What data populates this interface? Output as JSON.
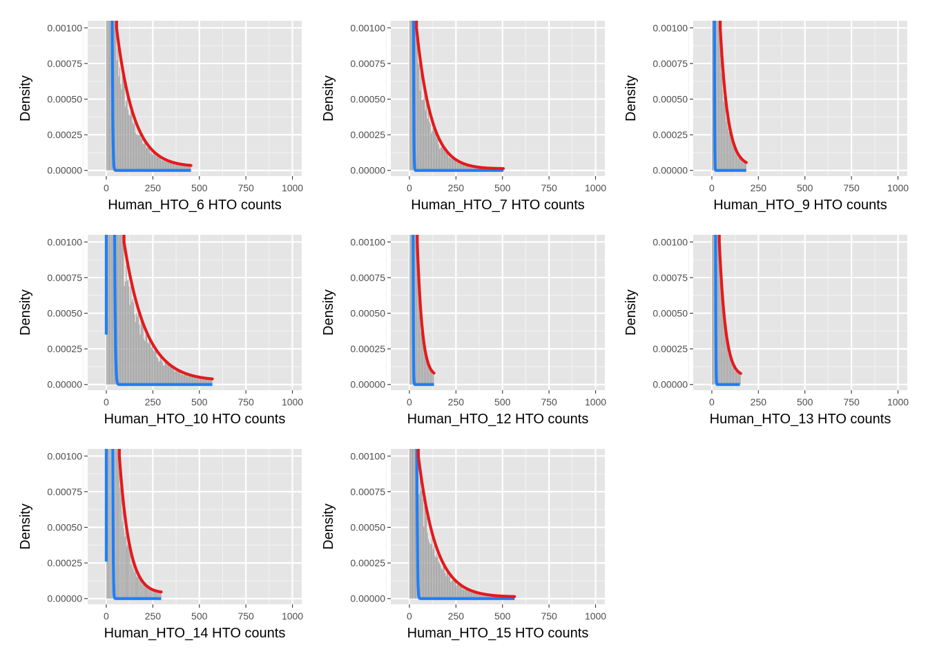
{
  "colors": {
    "panel_background": "#e5e5e5",
    "histogram": "#a3a3a3",
    "negative_fit": "#1f7ff5",
    "positive_fit": "#e41a1c"
  },
  "chart_data": [
    {
      "type": "bar",
      "panel": "Human_HTO_6",
      "xlabel": "Human_HTO_6 HTO counts",
      "ylabel": "Density",
      "xlim": [
        -100,
        1050
      ],
      "ylim": [
        -4e-05,
        0.00105
      ],
      "xticks": [
        0,
        250,
        500,
        750,
        1000
      ],
      "xtick_labels": [
        "0",
        "250",
        "500",
        "750",
        "1000"
      ],
      "yticks": [
        0,
        0.00025,
        0.0005,
        0.00075,
        0.001
      ],
      "ytick_labels": [
        "0.00000",
        "0.00025",
        "0.00050",
        "0.00075",
        "0.00100"
      ],
      "histogram": {
        "x_start": 0,
        "x_end": 455,
        "bin_width": 5
      },
      "negative_fit": {
        "peak_x": 12,
        "width": 20,
        "x_max": 455
      },
      "positive_fit": {
        "x_start": 55,
        "x_end": 455,
        "scale": 0.001,
        "decay": 95,
        "y_end": 2e-05
      }
    },
    {
      "type": "bar",
      "panel": "Human_HTO_7",
      "xlabel": "Human_HTO_7 HTO counts",
      "ylabel": "Density",
      "xlim": [
        -100,
        1050
      ],
      "ylim": [
        -4e-05,
        0.00105
      ],
      "xticks": [
        0,
        250,
        500,
        750,
        1000
      ],
      "xtick_labels": [
        "0",
        "250",
        "500",
        "750",
        "1000"
      ],
      "yticks": [
        0,
        0.00025,
        0.0005,
        0.00075,
        0.001
      ],
      "ytick_labels": [
        "0.00000",
        "0.00025",
        "0.00050",
        "0.00075",
        "0.00100"
      ],
      "histogram": {
        "x_start": 0,
        "x_end": 505,
        "bin_width": 5
      },
      "negative_fit": {
        "peak_x": 10,
        "width": 12,
        "x_max": 505
      },
      "positive_fit": {
        "x_start": 38,
        "x_end": 505,
        "scale": 0.001,
        "decay": 80,
        "y_end": 1e-05
      }
    },
    {
      "type": "bar",
      "panel": "Human_HTO_9",
      "xlabel": "Human_HTO_9 HTO counts",
      "ylabel": "Density",
      "xlim": [
        -100,
        1050
      ],
      "ylim": [
        -4e-05,
        0.00105
      ],
      "xticks": [
        0,
        250,
        500,
        750,
        1000
      ],
      "xtick_labels": [
        "0",
        "250",
        "500",
        "750",
        "1000"
      ],
      "yticks": [
        0,
        0.00025,
        0.0005,
        0.00075,
        0.001
      ],
      "ytick_labels": [
        "0.00000",
        "0.00025",
        "0.00050",
        "0.00075",
        "0.00100"
      ],
      "histogram": {
        "x_start": 0,
        "x_end": 185,
        "bin_width": 3
      },
      "negative_fit": {
        "peak_x": 6,
        "width": 8,
        "x_max": 185
      },
      "positive_fit": {
        "x_start": 45,
        "x_end": 185,
        "scale": 0.001,
        "decay": 42,
        "y_end": 2e-05
      }
    },
    {
      "type": "bar",
      "panel": "Human_HTO_10",
      "xlabel": "Human_HTO_10 HTO counts",
      "ylabel": "Density",
      "xlim": [
        -100,
        1050
      ],
      "ylim": [
        -4e-05,
        0.00105
      ],
      "xticks": [
        0,
        250,
        500,
        750,
        1000
      ],
      "xtick_labels": [
        "0",
        "250",
        "500",
        "750",
        "1000"
      ],
      "yticks": [
        0,
        0.00025,
        0.0005,
        0.00075,
        0.001
      ],
      "ytick_labels": [
        "0.00000",
        "0.00025",
        "0.00050",
        "0.00075",
        "0.00100"
      ],
      "histogram": {
        "x_start": 0,
        "x_end": 570,
        "bin_width": 5
      },
      "negative_fit": {
        "peak_x": 20,
        "width": 25,
        "x_max": 570,
        "left_stub_x": 0,
        "left_stub_y": 0.00035
      },
      "positive_fit": {
        "x_start": 95,
        "x_end": 570,
        "scale": 0.001,
        "decay": 120,
        "y_end": 2e-05
      }
    },
    {
      "type": "bar",
      "panel": "Human_HTO_12",
      "xlabel": "Human_HTO_12 HTO counts",
      "ylabel": "Density",
      "xlim": [
        -100,
        1050
      ],
      "ylim": [
        -4e-05,
        0.00105
      ],
      "xticks": [
        0,
        250,
        500,
        750,
        1000
      ],
      "xtick_labels": [
        "0",
        "250",
        "500",
        "750",
        "1000"
      ],
      "yticks": [
        0,
        0.00025,
        0.0005,
        0.00075,
        0.001
      ],
      "ytick_labels": [
        "0.00000",
        "0.00025",
        "0.00050",
        "0.00075",
        "0.00100"
      ],
      "histogram": {
        "x_start": 0,
        "x_end": 130,
        "bin_width": 3
      },
      "negative_fit": {
        "peak_x": 10,
        "width": 10,
        "x_max": 132
      },
      "positive_fit": {
        "x_start": 42,
        "x_end": 132,
        "scale": 0.001,
        "decay": 28,
        "y_end": 4e-05
      }
    },
    {
      "type": "bar",
      "panel": "Human_HTO_13",
      "xlabel": "Human_HTO_13 HTO counts",
      "ylabel": "Density",
      "xlim": [
        -100,
        1050
      ],
      "ylim": [
        -4e-05,
        0.00105
      ],
      "xticks": [
        0,
        250,
        500,
        750,
        1000
      ],
      "xtick_labels": [
        "0",
        "250",
        "500",
        "750",
        "1000"
      ],
      "yticks": [
        0,
        0.00025,
        0.0005,
        0.00075,
        0.001
      ],
      "ytick_labels": [
        "0.00000",
        "0.00025",
        "0.00050",
        "0.00075",
        "0.00100"
      ],
      "histogram": {
        "x_start": 0,
        "x_end": 155,
        "bin_width": 3
      },
      "negative_fit": {
        "peak_x": 10,
        "width": 10,
        "x_max": 150
      },
      "positive_fit": {
        "x_start": 40,
        "x_end": 155,
        "scale": 0.001,
        "decay": 35,
        "y_end": 4e-05
      }
    },
    {
      "type": "bar",
      "panel": "Human_HTO_14",
      "xlabel": "Human_HTO_14 HTO counts",
      "ylabel": "Density",
      "xlim": [
        -100,
        1050
      ],
      "ylim": [
        -4e-05,
        0.00105
      ],
      "xticks": [
        0,
        250,
        500,
        750,
        1000
      ],
      "xtick_labels": [
        "0",
        "250",
        "500",
        "750",
        "1000"
      ],
      "yticks": [
        0,
        0.00025,
        0.0005,
        0.00075,
        0.001
      ],
      "ytick_labels": [
        "0.00000",
        "0.00025",
        "0.00050",
        "0.00075",
        "0.00100"
      ],
      "histogram": {
        "x_start": 0,
        "x_end": 295,
        "bin_width": 4
      },
      "negative_fit": {
        "peak_x": 20,
        "width": 15,
        "x_max": 295,
        "left_stub_x": 0,
        "left_stub_y": 0.00026
      },
      "positive_fit": {
        "x_start": 70,
        "x_end": 295,
        "scale": 0.001,
        "decay": 55,
        "y_end": 3e-05
      }
    },
    {
      "type": "bar",
      "panel": "Human_HTO_15",
      "xlabel": "Human_HTO_15 HTO counts",
      "ylabel": "Density",
      "xlim": [
        -100,
        1050
      ],
      "ylim": [
        -4e-05,
        0.00105
      ],
      "xticks": [
        0,
        250,
        500,
        750,
        1000
      ],
      "xtick_labels": [
        "0",
        "250",
        "500",
        "750",
        "1000"
      ],
      "yticks": [
        0,
        0.00025,
        0.0005,
        0.00075,
        0.001
      ],
      "ytick_labels": [
        "0.00000",
        "0.00025",
        "0.00050",
        "0.00075",
        "0.00100"
      ],
      "histogram": {
        "x_start": 0,
        "x_end": 565,
        "bin_width": 5
      },
      "negative_fit": {
        "peak_x": 20,
        "width": 20,
        "x_max": 565
      },
      "positive_fit": {
        "x_start": 48,
        "x_end": 565,
        "scale": 0.001,
        "decay": 95,
        "y_end": 1e-05
      }
    }
  ]
}
